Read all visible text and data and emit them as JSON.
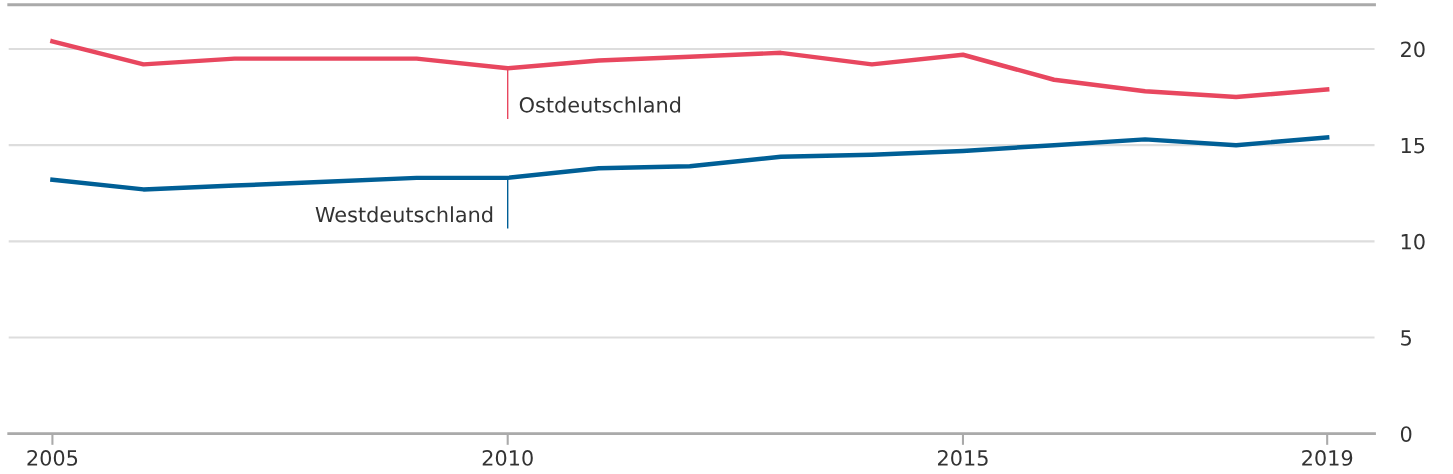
{
  "chart_data": {
    "type": "line",
    "x": [
      2005,
      2006,
      2007,
      2008,
      2009,
      2010,
      2011,
      2012,
      2013,
      2014,
      2015,
      2016,
      2017,
      2018,
      2019
    ],
    "series": [
      {
        "color": "#e8475f",
        "values": [
          20.4,
          19.2,
          19.5,
          19.5,
          19.5,
          19.0,
          19.4,
          19.6,
          19.8,
          19.2,
          19.7,
          18.4,
          17.8,
          17.5,
          17.9
        ]
      },
      {
        "color": "#005f96",
        "values": [
          13.2,
          12.7,
          12.9,
          13.1,
          13.3,
          13.3,
          13.8,
          13.9,
          14.4,
          14.5,
          14.7,
          15.0,
          15.3,
          15.0,
          15.4
        ]
      }
    ],
    "annotations": [
      {
        "text": "Ostdeutschland",
        "x": 2010,
        "y": 19.0
      },
      {
        "text": "Westdeutschland",
        "x": 2010,
        "y": 13.3
      }
    ],
    "xlim": [
      2004.52,
      2019.52
    ],
    "xticks": [
      2005,
      2010,
      2015,
      2019
    ],
    "ylim": [
      0,
      22.3
    ],
    "yticks": [
      0,
      5,
      10,
      15,
      20
    ],
    "grid": "y",
    "legend": false,
    "marker": "none",
    "line_style": "solid"
  }
}
